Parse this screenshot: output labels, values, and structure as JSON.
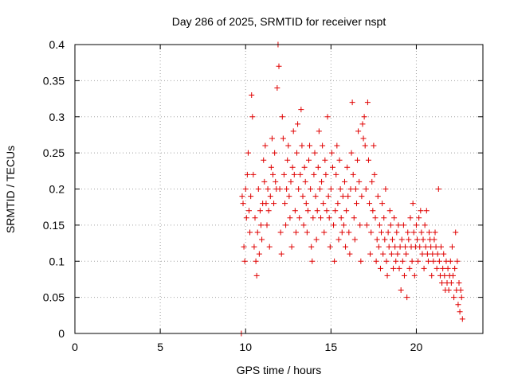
{
  "chart_data": {
    "type": "scatter",
    "title": "Day 286 of 2025, SRMTID for receiver nspt",
    "xlabel": "GPS time / hours",
    "ylabel": "SRMTID / TECUs",
    "xlim": [
      0,
      23.9
    ],
    "ylim": [
      0,
      0.4
    ],
    "xticks": [
      0,
      5,
      10,
      15,
      20
    ],
    "xtick_labels": [
      "0",
      "5",
      "10",
      "15",
      "20"
    ],
    "yticks": [
      0,
      0.05,
      0.1,
      0.15,
      0.2,
      0.25,
      0.3,
      0.35,
      0.4
    ],
    "ytick_labels": [
      "0",
      "0.05",
      "0.1",
      "0.15",
      "0.2",
      "0.25",
      "0.3",
      "0.35",
      "0.4"
    ],
    "grid": true,
    "marker": "plus",
    "marker_color": "#e00000",
    "series": [
      {
        "name": "SRMTID",
        "points": [
          [
            9.75,
            0.0
          ],
          [
            9.8,
            0.19
          ],
          [
            9.85,
            0.18
          ],
          [
            9.9,
            0.12
          ],
          [
            9.95,
            0.1
          ],
          [
            10.0,
            0.2
          ],
          [
            10.05,
            0.16
          ],
          [
            10.1,
            0.22
          ],
          [
            10.15,
            0.25
          ],
          [
            10.2,
            0.17
          ],
          [
            10.25,
            0.14
          ],
          [
            10.3,
            0.19
          ],
          [
            10.35,
            0.33
          ],
          [
            10.4,
            0.3
          ],
          [
            10.45,
            0.22
          ],
          [
            10.5,
            0.12
          ],
          [
            10.55,
            0.16
          ],
          [
            10.6,
            0.1
          ],
          [
            10.65,
            0.08
          ],
          [
            10.7,
            0.14
          ],
          [
            10.75,
            0.2
          ],
          [
            10.8,
            0.11
          ],
          [
            10.85,
            0.17
          ],
          [
            10.9,
            0.15
          ],
          [
            10.95,
            0.13
          ],
          [
            11.0,
            0.18
          ],
          [
            11.05,
            0.24
          ],
          [
            11.1,
            0.21
          ],
          [
            11.15,
            0.26
          ],
          [
            11.2,
            0.18
          ],
          [
            11.25,
            0.15
          ],
          [
            11.3,
            0.2
          ],
          [
            11.35,
            0.17
          ],
          [
            11.4,
            0.12
          ],
          [
            11.45,
            0.19
          ],
          [
            11.5,
            0.23
          ],
          [
            11.55,
            0.27
          ],
          [
            11.6,
            0.22
          ],
          [
            11.65,
            0.18
          ],
          [
            11.7,
            0.25
          ],
          [
            11.75,
            0.21
          ],
          [
            11.8,
            0.2
          ],
          [
            11.85,
            0.34
          ],
          [
            11.9,
            0.4
          ],
          [
            11.95,
            0.37
          ],
          [
            12.0,
            0.2
          ],
          [
            12.05,
            0.14
          ],
          [
            12.1,
            0.11
          ],
          [
            12.15,
            0.3
          ],
          [
            12.2,
            0.27
          ],
          [
            12.25,
            0.22
          ],
          [
            12.3,
            0.18
          ],
          [
            12.35,
            0.15
          ],
          [
            12.4,
            0.2
          ],
          [
            12.45,
            0.24
          ],
          [
            12.5,
            0.26
          ],
          [
            12.55,
            0.19
          ],
          [
            12.6,
            0.16
          ],
          [
            12.65,
            0.21
          ],
          [
            12.7,
            0.12
          ],
          [
            12.75,
            0.23
          ],
          [
            12.8,
            0.28
          ],
          [
            12.85,
            0.22
          ],
          [
            12.9,
            0.17
          ],
          [
            12.95,
            0.14
          ],
          [
            13.0,
            0.25
          ],
          [
            13.05,
            0.29
          ],
          [
            13.1,
            0.2
          ],
          [
            13.15,
            0.16
          ],
          [
            13.2,
            0.22
          ],
          [
            13.25,
            0.31
          ],
          [
            13.3,
            0.26
          ],
          [
            13.35,
            0.19
          ],
          [
            13.4,
            0.15
          ],
          [
            13.45,
            0.23
          ],
          [
            13.5,
            0.21
          ],
          [
            13.55,
            0.18
          ],
          [
            13.6,
            0.14
          ],
          [
            13.65,
            0.17
          ],
          [
            13.7,
            0.24
          ],
          [
            13.75,
            0.26
          ],
          [
            13.8,
            0.2
          ],
          [
            13.85,
            0.12
          ],
          [
            13.9,
            0.1
          ],
          [
            13.95,
            0.16
          ],
          [
            14.0,
            0.22
          ],
          [
            14.05,
            0.25
          ],
          [
            14.1,
            0.19
          ],
          [
            14.15,
            0.13
          ],
          [
            14.2,
            0.17
          ],
          [
            14.25,
            0.23
          ],
          [
            14.3,
            0.28
          ],
          [
            14.35,
            0.2
          ],
          [
            14.4,
            0.16
          ],
          [
            14.45,
            0.21
          ],
          [
            14.5,
            0.26
          ],
          [
            14.55,
            0.18
          ],
          [
            14.6,
            0.14
          ],
          [
            14.65,
            0.24
          ],
          [
            14.7,
            0.22
          ],
          [
            14.75,
            0.17
          ],
          [
            14.8,
            0.3
          ],
          [
            14.85,
            0.19
          ],
          [
            14.9,
            0.16
          ],
          [
            14.95,
            0.12
          ],
          [
            15.0,
            0.2
          ],
          [
            15.05,
            0.25
          ],
          [
            15.1,
            0.23
          ],
          [
            15.15,
            0.15
          ],
          [
            15.2,
            0.1
          ],
          [
            15.25,
            0.17
          ],
          [
            15.3,
            0.22
          ],
          [
            15.35,
            0.26
          ],
          [
            15.4,
            0.18
          ],
          [
            15.45,
            0.13
          ],
          [
            15.5,
            0.24
          ],
          [
            15.55,
            0.2
          ],
          [
            15.6,
            0.16
          ],
          [
            15.65,
            0.14
          ],
          [
            15.7,
            0.19
          ],
          [
            15.75,
            0.15
          ],
          [
            15.8,
            0.21
          ],
          [
            15.85,
            0.12
          ],
          [
            15.9,
            0.17
          ],
          [
            15.95,
            0.23
          ],
          [
            16.0,
            0.19
          ],
          [
            16.05,
            0.14
          ],
          [
            16.1,
            0.11
          ],
          [
            16.15,
            0.2
          ],
          [
            16.2,
            0.25
          ],
          [
            16.25,
            0.32
          ],
          [
            16.3,
            0.22
          ],
          [
            16.35,
            0.16
          ],
          [
            16.4,
            0.13
          ],
          [
            16.45,
            0.2
          ],
          [
            16.5,
            0.18
          ],
          [
            16.55,
            0.24
          ],
          [
            16.6,
            0.28
          ],
          [
            16.65,
            0.21
          ],
          [
            16.7,
            0.15
          ],
          [
            16.75,
            0.1
          ],
          [
            16.8,
            0.19
          ],
          [
            16.85,
            0.29
          ],
          [
            16.9,
            0.27
          ],
          [
            16.95,
            0.3
          ],
          [
            17.0,
            0.26
          ],
          [
            17.05,
            0.2
          ],
          [
            17.1,
            0.15
          ],
          [
            17.15,
            0.32
          ],
          [
            17.2,
            0.24
          ],
          [
            17.25,
            0.18
          ],
          [
            17.3,
            0.11
          ],
          [
            17.35,
            0.14
          ],
          [
            17.4,
            0.21
          ],
          [
            17.45,
            0.17
          ],
          [
            17.5,
            0.26
          ],
          [
            17.55,
            0.22
          ],
          [
            17.6,
            0.16
          ],
          [
            17.65,
            0.1
          ],
          [
            17.7,
            0.13
          ],
          [
            17.75,
            0.19
          ],
          [
            17.8,
            0.12
          ],
          [
            17.85,
            0.15
          ],
          [
            17.9,
            0.09
          ],
          [
            17.95,
            0.14
          ],
          [
            18.0,
            0.18
          ],
          [
            18.05,
            0.11
          ],
          [
            18.1,
            0.16
          ],
          [
            18.15,
            0.13
          ],
          [
            18.2,
            0.2
          ],
          [
            18.25,
            0.1
          ],
          [
            18.3,
            0.08
          ],
          [
            18.35,
            0.14
          ],
          [
            18.4,
            0.12
          ],
          [
            18.45,
            0.17
          ],
          [
            18.5,
            0.15
          ],
          [
            18.55,
            0.11
          ],
          [
            18.6,
            0.13
          ],
          [
            18.65,
            0.09
          ],
          [
            18.7,
            0.16
          ],
          [
            18.75,
            0.12
          ],
          [
            18.8,
            0.1
          ],
          [
            18.85,
            0.14
          ],
          [
            18.9,
            0.11
          ],
          [
            18.95,
            0.15
          ],
          [
            19.0,
            0.09
          ],
          [
            19.05,
            0.12
          ],
          [
            19.1,
            0.06
          ],
          [
            19.15,
            0.13
          ],
          [
            19.2,
            0.1
          ],
          [
            19.25,
            0.15
          ],
          [
            19.3,
            0.08
          ],
          [
            19.35,
            0.12
          ],
          [
            19.4,
            0.11
          ],
          [
            19.45,
            0.05
          ],
          [
            19.5,
            0.14
          ],
          [
            19.55,
            0.13
          ],
          [
            19.6,
            0.09
          ],
          [
            19.65,
            0.16
          ],
          [
            19.7,
            0.12
          ],
          [
            19.75,
            0.1
          ],
          [
            19.8,
            0.18
          ],
          [
            19.85,
            0.14
          ],
          [
            19.9,
            0.08
          ],
          [
            19.95,
            0.12
          ],
          [
            20.0,
            0.15
          ],
          [
            20.05,
            0.13
          ],
          [
            20.1,
            0.1
          ],
          [
            20.15,
            0.16
          ],
          [
            20.2,
            0.12
          ],
          [
            20.25,
            0.17
          ],
          [
            20.3,
            0.14
          ],
          [
            20.35,
            0.11
          ],
          [
            20.4,
            0.13
          ],
          [
            20.45,
            0.09
          ],
          [
            20.5,
            0.15
          ],
          [
            20.55,
            0.12
          ],
          [
            20.6,
            0.17
          ],
          [
            20.65,
            0.11
          ],
          [
            20.7,
            0.1
          ],
          [
            20.75,
            0.14
          ],
          [
            20.8,
            0.13
          ],
          [
            20.85,
            0.12
          ],
          [
            20.9,
            0.08
          ],
          [
            20.95,
            0.11
          ],
          [
            21.0,
            0.1
          ],
          [
            21.05,
            0.13
          ],
          [
            21.1,
            0.14
          ],
          [
            21.15,
            0.12
          ],
          [
            21.2,
            0.09
          ],
          [
            21.25,
            0.11
          ],
          [
            21.3,
            0.2
          ],
          [
            21.35,
            0.1
          ],
          [
            21.4,
            0.08
          ],
          [
            21.45,
            0.12
          ],
          [
            21.5,
            0.07
          ],
          [
            21.55,
            0.09
          ],
          [
            21.6,
            0.11
          ],
          [
            21.65,
            0.08
          ],
          [
            21.7,
            0.06
          ],
          [
            21.75,
            0.1
          ],
          [
            21.8,
            0.07
          ],
          [
            21.85,
            0.09
          ],
          [
            21.9,
            0.06
          ],
          [
            21.95,
            0.08
          ],
          [
            22.0,
            0.1
          ],
          [
            22.05,
            0.07
          ],
          [
            22.1,
            0.12
          ],
          [
            22.15,
            0.08
          ],
          [
            22.2,
            0.05
          ],
          [
            22.25,
            0.09
          ],
          [
            22.3,
            0.14
          ],
          [
            22.35,
            0.06
          ],
          [
            22.4,
            0.1
          ],
          [
            22.45,
            0.04
          ],
          [
            22.5,
            0.07
          ],
          [
            22.55,
            0.03
          ],
          [
            22.6,
            0.06
          ],
          [
            22.65,
            0.05
          ],
          [
            22.7,
            0.02
          ]
        ]
      }
    ]
  }
}
